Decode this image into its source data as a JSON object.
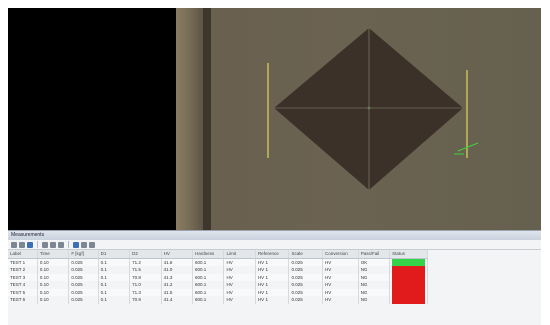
{
  "panel": {
    "title": "Measurements"
  },
  "toolbar": {
    "icons": [
      "open-icon",
      "save-icon",
      "print-icon",
      "zoom-in-icon",
      "zoom-out-icon",
      "fit-icon",
      "settings-icon",
      "export-icon",
      "delete-icon"
    ]
  },
  "table": {
    "headers": [
      "Label",
      "Time",
      "F [kgf]",
      "D1",
      "D2",
      "HV",
      "Hardness",
      "Limit",
      "Reference",
      "Scale",
      "Conversion",
      "Pass/Fail",
      "Status"
    ],
    "rows": [
      {
        "cells": [
          "TEST 1",
          "0.10",
          "0.025",
          "0.1",
          "71.2",
          "41.6",
          "600.1",
          "HV",
          "HV 1",
          "0.025",
          "HV",
          "OK"
        ],
        "status_color": "#35d34a"
      },
      {
        "cells": [
          "TEST 2",
          "0.10",
          "0.025",
          "0.1",
          "71.5",
          "41.0",
          "600.1",
          "HV",
          "HV 1",
          "0.025",
          "HV",
          "NG"
        ],
        "status_color": "#e11b1b"
      },
      {
        "cells": [
          "TEST 3",
          "0.10",
          "0.025",
          "0.1",
          "70.8",
          "41.3",
          "600.1",
          "HV",
          "HV 1",
          "0.025",
          "HV",
          "NG"
        ],
        "status_color": "#e11b1b"
      },
      {
        "cells": [
          "TEST 4",
          "0.10",
          "0.025",
          "0.1",
          "71.0",
          "41.2",
          "600.1",
          "HV",
          "HV 1",
          "0.025",
          "HV",
          "NG"
        ],
        "status_color": "#e11b1b"
      },
      {
        "cells": [
          "TEST 5",
          "0.10",
          "0.025",
          "0.1",
          "71.3",
          "41.5",
          "600.1",
          "HV",
          "HV 1",
          "0.025",
          "HV",
          "NG"
        ],
        "status_color": "#e11b1b"
      },
      {
        "cells": [
          "TEST 6",
          "0.10",
          "0.025",
          "0.1",
          "70.9",
          "41.4",
          "600.1",
          "HV",
          "HV 1",
          "0.025",
          "HV",
          "NG"
        ],
        "status_color": "#e11b1b"
      }
    ]
  },
  "colors": {
    "indent_fill": "#3c3128",
    "guide_line": "#e0d85a",
    "handle": "#3cd33a",
    "crosshair": "#8a8a7a"
  }
}
